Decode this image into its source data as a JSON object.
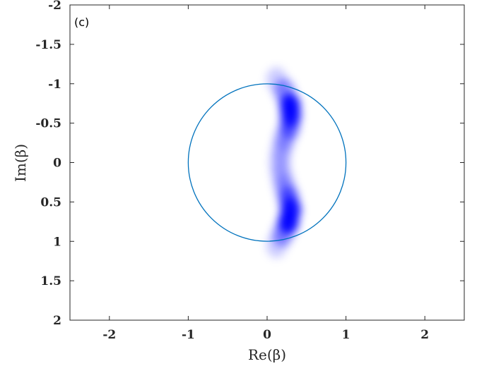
{
  "chart_data": {
    "type": "heatmap",
    "panel_label": "(c)",
    "xlabel": "Re(β)",
    "ylabel": "Im(β)",
    "xlim": [
      -2.5,
      2.5
    ],
    "ylim": [
      -2,
      2
    ],
    "y_axis_direction": "reversed",
    "x_ticks": [
      -2,
      -1,
      0,
      1,
      2
    ],
    "x_tick_labels": [
      "-2",
      "-1",
      "0",
      "1",
      "2"
    ],
    "y_ticks": [
      -2,
      -1.5,
      -1,
      -0.5,
      0,
      0.5,
      1,
      1.5,
      2
    ],
    "y_tick_labels": [
      "-2",
      "-1.5",
      "-1",
      "-0.5",
      "0",
      "0.5",
      "1",
      "1.5",
      "2"
    ],
    "grid": false,
    "unit_circle": {
      "center": [
        0,
        0
      ],
      "radius": 1,
      "color": "#0072BD"
    },
    "density": {
      "colormap": [
        "#ffffff",
        "#0000ff"
      ],
      "ridge": [
        {
          "x": 0.12,
          "y": -1.05,
          "w": 0.2
        },
        {
          "x": 0.22,
          "y": -0.9,
          "w": 0.45
        },
        {
          "x": 0.29,
          "y": -0.72,
          "w": 0.95
        },
        {
          "x": 0.3,
          "y": -0.6,
          "w": 0.85
        },
        {
          "x": 0.28,
          "y": -0.45,
          "w": 0.55
        },
        {
          "x": 0.22,
          "y": -0.3,
          "w": 0.35
        },
        {
          "x": 0.18,
          "y": -0.15,
          "w": 0.25
        },
        {
          "x": 0.16,
          "y": 0.0,
          "w": 0.22
        },
        {
          "x": 0.18,
          "y": 0.15,
          "w": 0.25
        },
        {
          "x": 0.22,
          "y": 0.3,
          "w": 0.35
        },
        {
          "x": 0.27,
          "y": 0.45,
          "w": 0.6
        },
        {
          "x": 0.3,
          "y": 0.6,
          "w": 0.9
        },
        {
          "x": 0.27,
          "y": 0.75,
          "w": 0.95
        },
        {
          "x": 0.2,
          "y": 0.9,
          "w": 0.45
        },
        {
          "x": 0.12,
          "y": 1.05,
          "w": 0.2
        }
      ]
    }
  }
}
